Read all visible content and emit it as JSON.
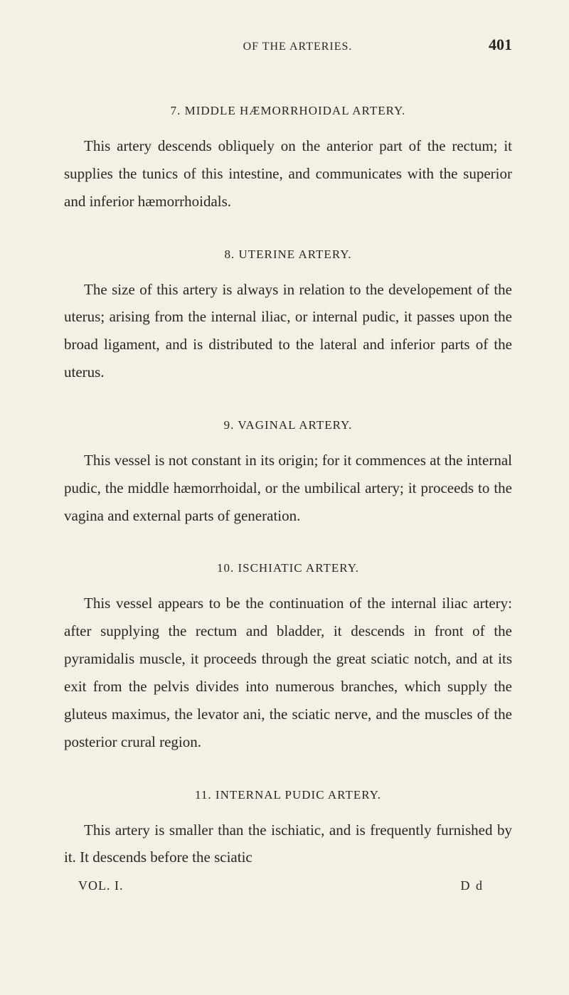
{
  "header": {
    "running_head": "OF THE ARTERIES.",
    "page_number": "401"
  },
  "sections": [
    {
      "num": "7.",
      "title": "MIDDLE HÆMORRHOIDAL ARTERY.",
      "body": "This artery descends obliquely on the anterior part of the rectum; it supplies the tunics of this intestine, and communicates with the superior and inferior hæmorrhoidals."
    },
    {
      "num": "8.",
      "title": "UTERINE ARTERY.",
      "body": "The size of this artery is always in relation to the developement of the uterus; arising from the internal iliac, or internal pudic, it passes upon the broad ligament, and is distributed to the lateral and inferior parts of the uterus."
    },
    {
      "num": "9.",
      "title": "VAGINAL ARTERY.",
      "body": "This vessel is not constant in its origin; for it commences at the internal pudic, the middle hæmorrhoidal, or the umbilical artery; it proceeds to the vagina and external parts of generation."
    },
    {
      "num": "10.",
      "title": "ISCHIATIC ARTERY.",
      "body": "This vessel appears to be the continuation of the internal iliac artery: after supplying the rectum and bladder, it descends in front of the pyramidalis muscle, it proceeds through the great sciatic notch, and at its exit from the pelvis divides into numerous branches, which supply the gluteus maximus, the levator ani, the sciatic nerve, and the muscles of the posterior crural region."
    },
    {
      "num": "11.",
      "title": "INTERNAL PUDIC ARTERY.",
      "body": "This artery is smaller than the ischiatic, and is frequently furnished by it.  It descends before the sciatic"
    }
  ],
  "footer": {
    "volume": "VOL. I.",
    "signature": "D d"
  },
  "style": {
    "background_color": "#f5f0e6",
    "text_color": "#2a2620",
    "body_fontsize": 21,
    "heading_fontsize": 17,
    "running_head_fontsize": 16,
    "page_number_fontsize": 22,
    "line_height": 1.85,
    "text_indent": 28
  }
}
